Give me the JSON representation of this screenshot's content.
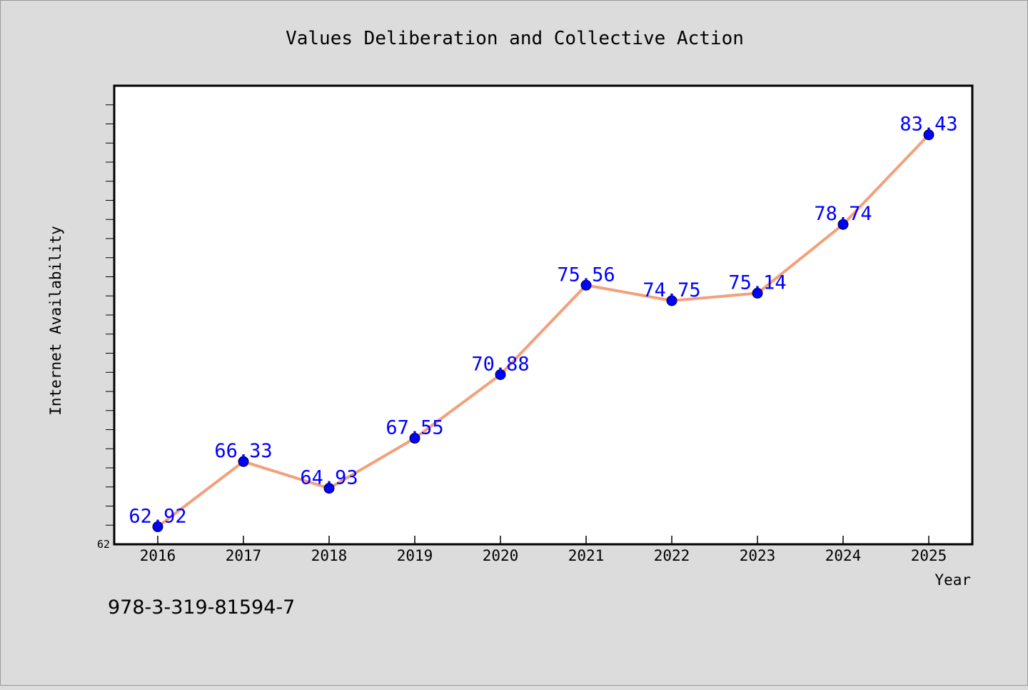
{
  "chart_data": {
    "type": "line",
    "title": "Values Deliberation and Collective Action",
    "xlabel": "Year",
    "ylabel": "Internet Availability",
    "categories": [
      "2016",
      "2017",
      "2018",
      "2019",
      "2020",
      "2021",
      "2022",
      "2023",
      "2024",
      "2025"
    ],
    "series": [
      {
        "values": [
          62.92,
          66.33,
          64.93,
          67.55,
          70.88,
          75.56,
          74.75,
          75.14,
          78.74,
          83.43
        ],
        "data_labels": [
          "62.92",
          "66.33",
          "64.93",
          "67.55",
          "70.88",
          "75.56",
          "74.75",
          "75.14",
          "78.74",
          "83.43"
        ],
        "line_color": "#f4a07a",
        "marker_color": "#0000ff"
      }
    ],
    "ylim": [
      62,
      86
    ],
    "y_tick_labels": [
      "62"
    ],
    "grid": false,
    "legend": "none"
  },
  "footer": {
    "isbn": "978-3-319-81594-7"
  }
}
